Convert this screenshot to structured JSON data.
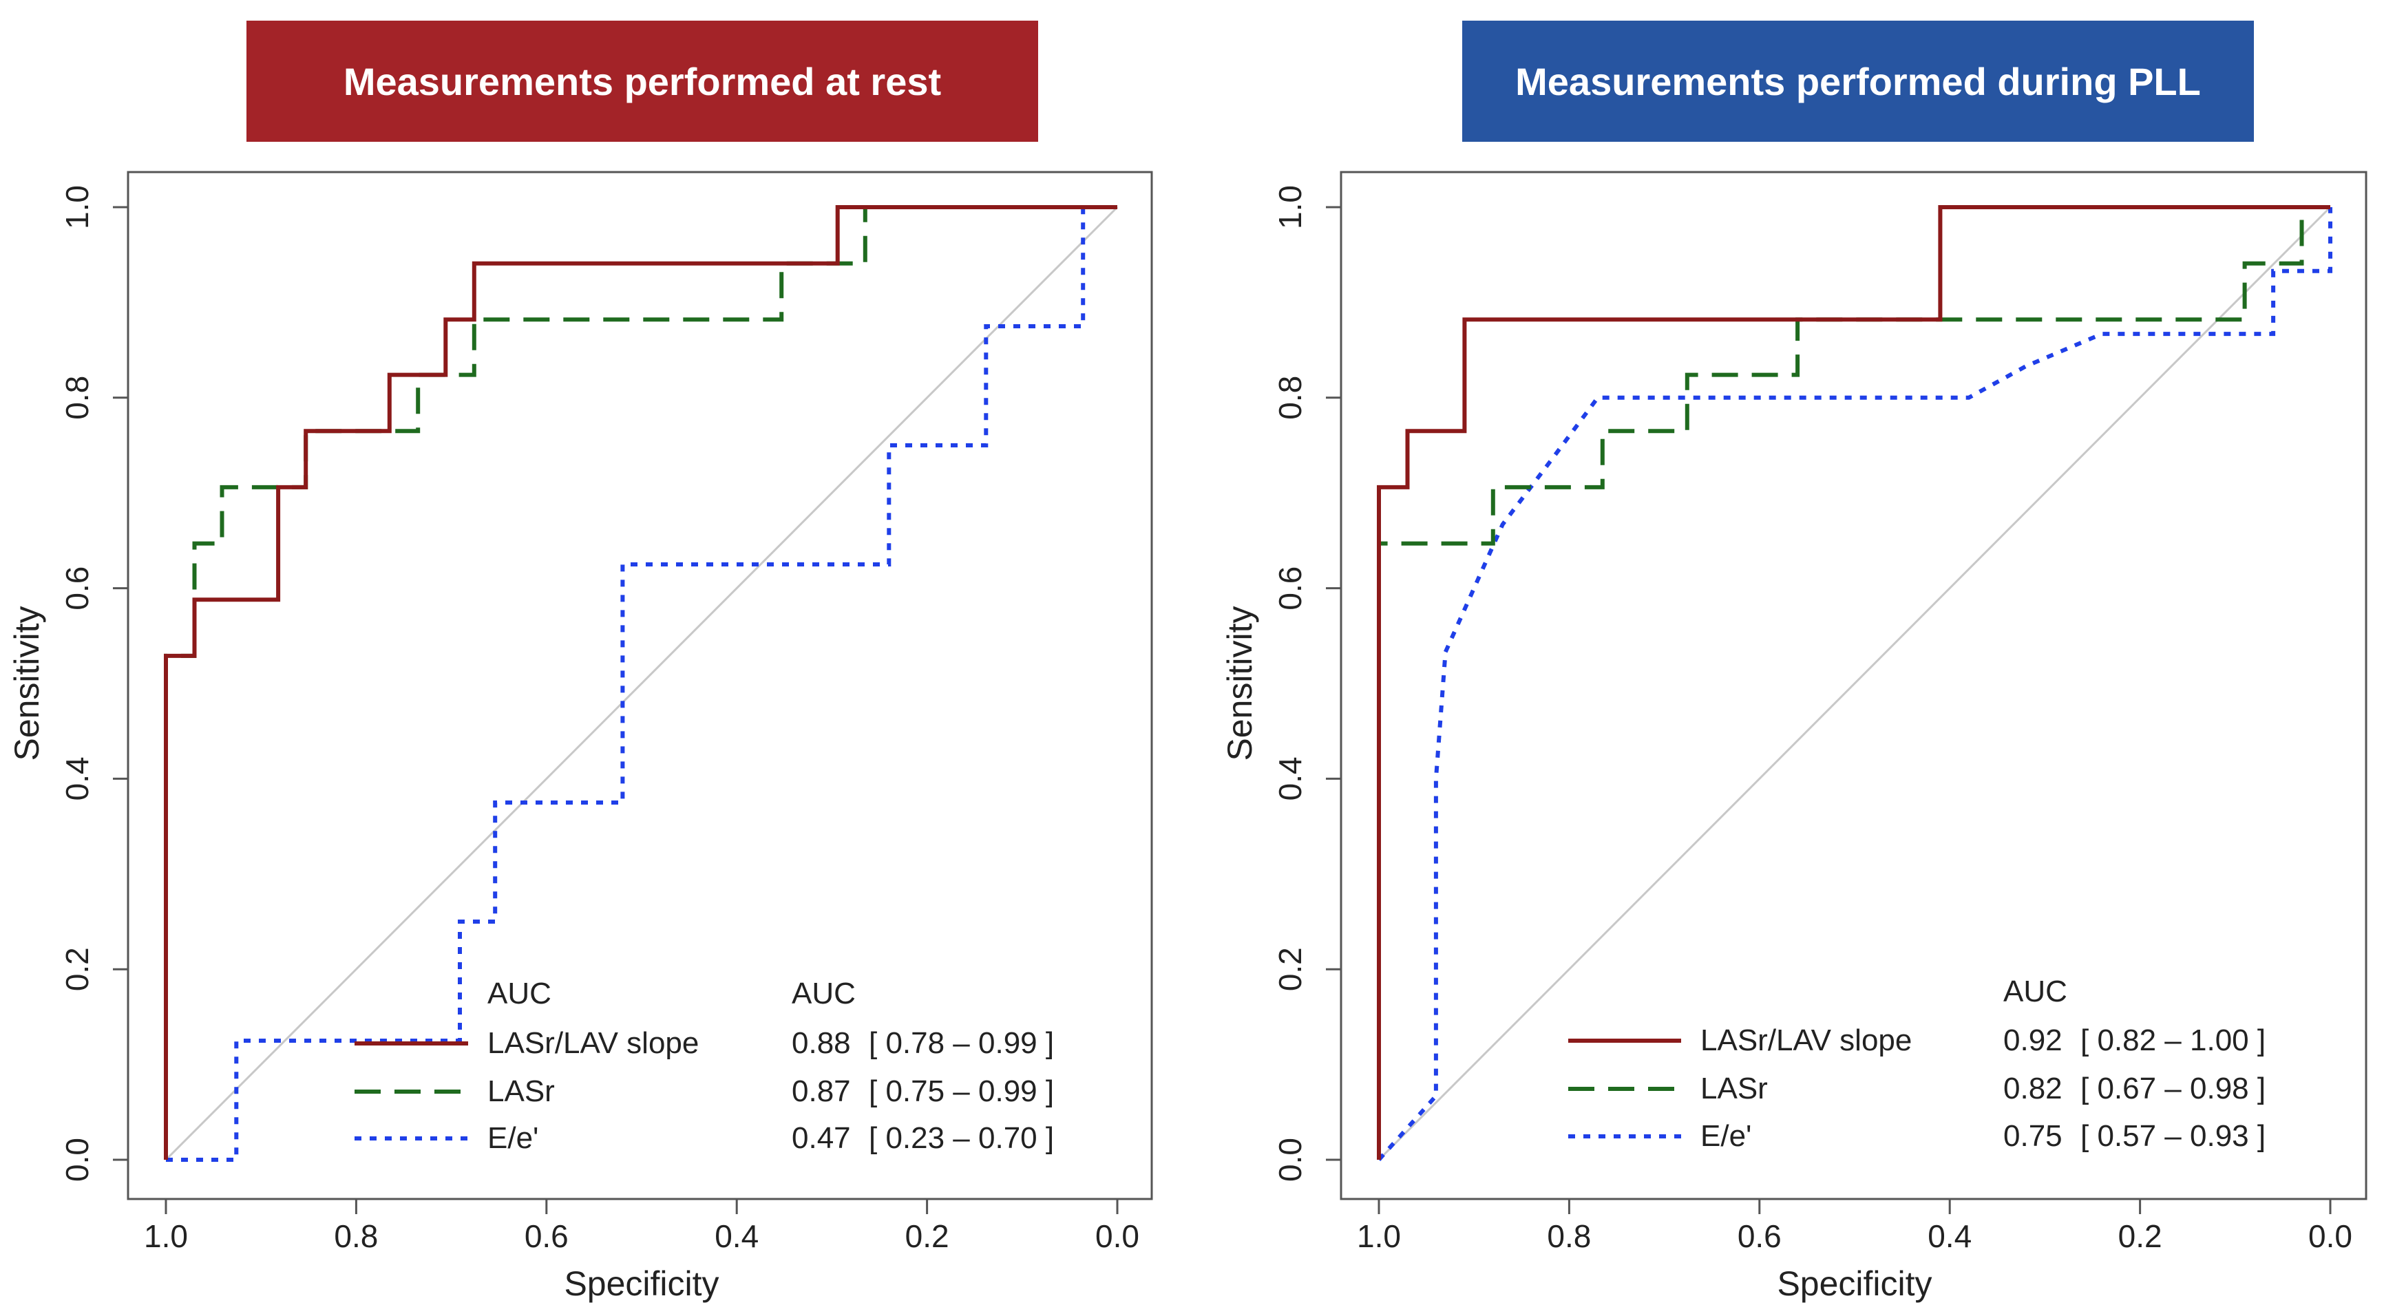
{
  "chart_data": [
    {
      "type": "line",
      "title": "Measurements performed at rest",
      "title_color": "#a32328",
      "xlabel": "Specificity",
      "ylabel": "Sensitivity",
      "xlim": [
        1.0,
        0.0
      ],
      "ylim": [
        0.0,
        1.0
      ],
      "xticks": [
        "1.0",
        "0.8",
        "0.6",
        "0.4",
        "0.2",
        "0.0"
      ],
      "yticks": [
        "0.0",
        "0.2",
        "0.4",
        "0.6",
        "0.8",
        "1.0"
      ],
      "legend": {
        "placement": "bottom-right",
        "header_left": "AUC",
        "header_right": "AUC"
      },
      "series": [
        {
          "name": "LASr/LAV slope",
          "color": "#8b1a1a",
          "style": "solid",
          "auc": "0.88",
          "ci": "[ 0.78 – 0.99 ]",
          "x": [
            1.0,
            1.0,
            0.97,
            0.97,
            0.882,
            0.882,
            0.853,
            0.853,
            0.765,
            0.765,
            0.706,
            0.706,
            0.676,
            0.676,
            0.294,
            0.294,
            0.0
          ],
          "y": [
            0.0,
            0.529,
            0.529,
            0.588,
            0.588,
            0.706,
            0.706,
            0.765,
            0.765,
            0.824,
            0.824,
            0.882,
            0.882,
            0.941,
            0.941,
            1.0,
            1.0
          ]
        },
        {
          "name": "LASr",
          "color": "#1f6b1f",
          "style": "dashed",
          "auc": "0.87",
          "ci": "[ 0.75 – 0.99 ]",
          "x": [
            1.0,
            1.0,
            0.97,
            0.97,
            0.941,
            0.941,
            0.853,
            0.853,
            0.735,
            0.735,
            0.676,
            0.676,
            0.353,
            0.353,
            0.265,
            0.265,
            0.0
          ],
          "y": [
            0.0,
            0.529,
            0.529,
            0.647,
            0.647,
            0.706,
            0.706,
            0.765,
            0.765,
            0.824,
            0.824,
            0.882,
            0.882,
            0.941,
            0.941,
            1.0,
            1.0
          ]
        },
        {
          "name": "E/e'",
          "color": "#1f3fe8",
          "style": "dotted",
          "auc": "0.47",
          "ci": "[ 0.23 – 0.70 ]",
          "x": [
            1.0,
            0.926,
            0.926,
            0.691,
            0.691,
            0.654,
            0.654,
            0.52,
            0.52,
            0.24,
            0.24,
            0.138,
            0.138,
            0.036,
            0.036,
            0.0
          ],
          "y": [
            0.0,
            0.0,
            0.125,
            0.125,
            0.25,
            0.25,
            0.375,
            0.375,
            0.625,
            0.625,
            0.75,
            0.75,
            0.875,
            0.875,
            1.0,
            1.0
          ]
        }
      ]
    },
    {
      "type": "line",
      "title": "Measurements performed during PLL",
      "title_color": "#2755a1",
      "xlabel": "Specificity",
      "ylabel": "Sensitivity",
      "xlim": [
        1.0,
        0.0
      ],
      "ylim": [
        0.0,
        1.0
      ],
      "xticks": [
        "1.0",
        "0.8",
        "0.6",
        "0.4",
        "0.2",
        "0.0"
      ],
      "yticks": [
        "0.0",
        "0.2",
        "0.4",
        "0.6",
        "0.8",
        "1.0"
      ],
      "legend": {
        "placement": "bottom-right",
        "header_left": "",
        "header_right": "AUC"
      },
      "series": [
        {
          "name": "LASr/LAV slope",
          "color": "#8b1a1a",
          "style": "solid",
          "auc": "0.92",
          "ci": "[ 0.82 – 1.00 ]",
          "x": [
            1.0,
            1.0,
            0.97,
            0.97,
            0.91,
            0.91,
            0.41,
            0.41,
            0.03,
            0.03,
            0.0
          ],
          "y": [
            0.0,
            0.706,
            0.706,
            0.765,
            0.765,
            0.882,
            0.882,
            1.0,
            1.0,
            1.0,
            1.0
          ]
        },
        {
          "name": "LASr",
          "color": "#1f6b1f",
          "style": "dashed",
          "auc": "0.82",
          "ci": "[ 0.67 – 0.98 ]",
          "x": [
            1.0,
            1.0,
            0.88,
            0.88,
            0.765,
            0.765,
            0.676,
            0.676,
            0.56,
            0.56,
            0.09,
            0.09,
            0.03,
            0.03,
            0.0
          ],
          "y": [
            0.0,
            0.647,
            0.647,
            0.706,
            0.706,
            0.765,
            0.765,
            0.824,
            0.824,
            0.882,
            0.882,
            0.941,
            0.941,
            1.0,
            1.0
          ]
        },
        {
          "name": "E/e'",
          "color": "#1f3fe8",
          "style": "dotted",
          "auc": "0.75",
          "ci": "[ 0.57 – 0.93 ]",
          "x": [
            1.0,
            0.94,
            0.94,
            0.93,
            0.9,
            0.87,
            0.82,
            0.77,
            0.76,
            0.76,
            0.38,
            0.32,
            0.24,
            0.06,
            0.06,
            0.0,
            0.0
          ],
          "y": [
            0.0,
            0.067,
            0.4,
            0.533,
            0.6,
            0.667,
            0.733,
            0.8,
            0.8,
            0.8,
            0.8,
            0.833,
            0.867,
            0.867,
            0.933,
            0.933,
            1.0
          ]
        }
      ]
    }
  ]
}
